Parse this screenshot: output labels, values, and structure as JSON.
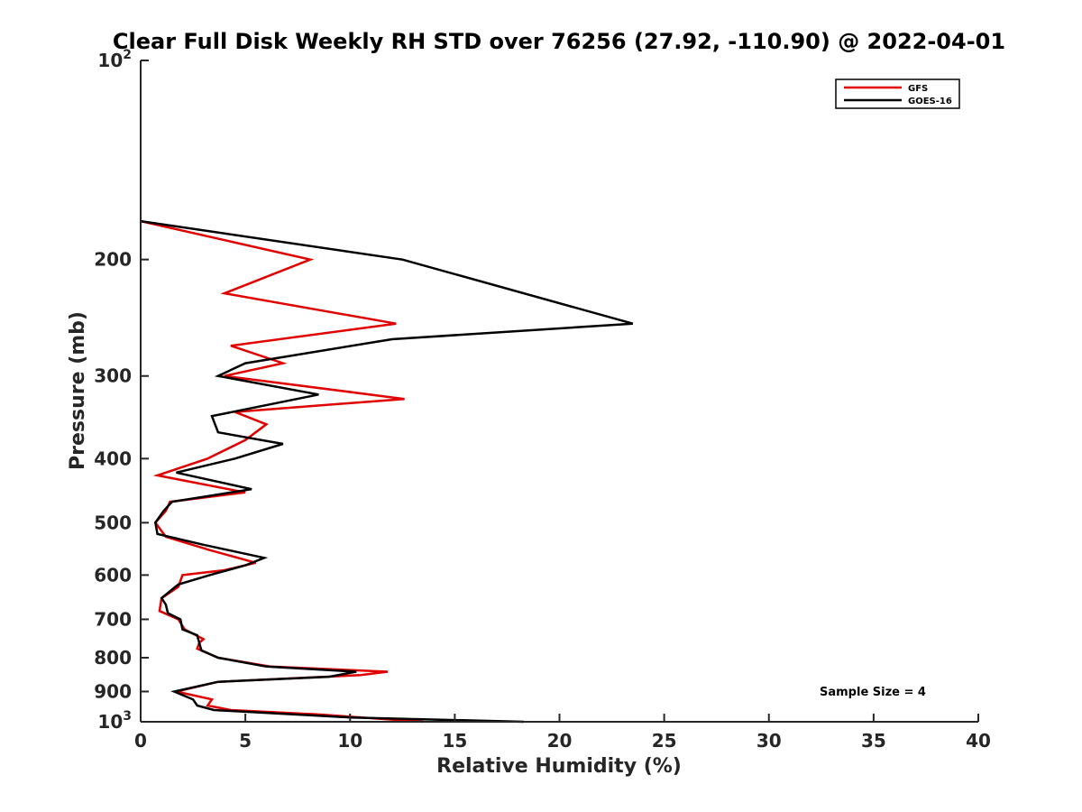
{
  "chart_data": {
    "type": "line",
    "title": "Clear Full Disk Weekly RH STD over 76256 (27.92, -110.90) @ 2022-04-01",
    "xlabel": "Relative Humidity (%)",
    "ylabel": "Pressure (mb)",
    "xlim": [
      0,
      40
    ],
    "ylim": [
      100,
      1000
    ],
    "yscale": "log",
    "y_reversed": true,
    "x_ticks": [
      0,
      5,
      10,
      15,
      20,
      25,
      30,
      35,
      40
    ],
    "x_tick_labels": [
      "0",
      "5",
      "10",
      "15",
      "20",
      "25",
      "30",
      "35",
      "40"
    ],
    "y_ticks": [
      100,
      200,
      300,
      400,
      500,
      600,
      700,
      800,
      900,
      1000
    ],
    "y_tick_labels": [
      {
        "base": "10",
        "exp": "2"
      },
      {
        "text": "200"
      },
      {
        "text": "300"
      },
      {
        "text": "400"
      },
      {
        "text": "500"
      },
      {
        "text": "600"
      },
      {
        "text": "700"
      },
      {
        "text": "800"
      },
      {
        "text": "900"
      },
      {
        "base": "10",
        "exp": "3"
      }
    ],
    "legend_position": "top-right",
    "annotation": "Sample Size = 4",
    "series": [
      {
        "name": "GFS",
        "color": "#e00000",
        "points": [
          [
            0.0,
            175
          ],
          [
            8.1,
            200
          ],
          [
            4.0,
            225
          ],
          [
            12.2,
            250
          ],
          [
            4.3,
            270
          ],
          [
            6.8,
            287
          ],
          [
            4.0,
            300
          ],
          [
            12.6,
            325
          ],
          [
            4.5,
            340
          ],
          [
            6.0,
            355
          ],
          [
            5.0,
            375
          ],
          [
            3.2,
            400
          ],
          [
            0.8,
            424
          ],
          [
            5.0,
            450
          ],
          [
            1.4,
            465
          ],
          [
            1.2,
            480
          ],
          [
            0.7,
            500
          ],
          [
            1.2,
            525
          ],
          [
            3.3,
            550
          ],
          [
            5.5,
            575
          ],
          [
            4.0,
            590
          ],
          [
            2.0,
            600
          ],
          [
            1.8,
            625
          ],
          [
            1.0,
            650
          ],
          [
            0.9,
            680
          ],
          [
            1.8,
            700
          ],
          [
            2.1,
            725
          ],
          [
            3.0,
            750
          ],
          [
            2.8,
            760
          ],
          [
            2.7,
            775
          ],
          [
            3.7,
            800
          ],
          [
            6.2,
            825
          ],
          [
            11.8,
            840
          ],
          [
            10.5,
            850
          ],
          [
            3.7,
            870
          ],
          [
            1.7,
            900
          ],
          [
            3.4,
            925
          ],
          [
            3.2,
            945
          ],
          [
            4.3,
            960
          ],
          [
            8.5,
            975
          ],
          [
            13.5,
            1000
          ]
        ]
      },
      {
        "name": "GOES-16",
        "color": "#000000",
        "points": [
          [
            0.0,
            175
          ],
          [
            12.5,
            200
          ],
          [
            23.5,
            250
          ],
          [
            12.0,
            264
          ],
          [
            5.0,
            287
          ],
          [
            3.7,
            300
          ],
          [
            8.5,
            320
          ],
          [
            3.4,
            345
          ],
          [
            3.7,
            365
          ],
          [
            6.8,
            380
          ],
          [
            4.5,
            400
          ],
          [
            1.7,
            420
          ],
          [
            5.3,
            445
          ],
          [
            1.5,
            465
          ],
          [
            1.1,
            480
          ],
          [
            0.7,
            500
          ],
          [
            0.8,
            520
          ],
          [
            3.0,
            540
          ],
          [
            5.9,
            565
          ],
          [
            5.0,
            580
          ],
          [
            3.3,
            600
          ],
          [
            1.8,
            620
          ],
          [
            1.0,
            650
          ],
          [
            1.2,
            665
          ],
          [
            1.3,
            685
          ],
          [
            1.9,
            700
          ],
          [
            2.0,
            725
          ],
          [
            2.7,
            740
          ],
          [
            2.8,
            760
          ],
          [
            2.9,
            780
          ],
          [
            3.7,
            800
          ],
          [
            6.0,
            825
          ],
          [
            10.3,
            840
          ],
          [
            9.0,
            855
          ],
          [
            3.7,
            870
          ],
          [
            1.6,
            900
          ],
          [
            2.5,
            925
          ],
          [
            2.7,
            945
          ],
          [
            3.5,
            960
          ],
          [
            10.0,
            985
          ],
          [
            18.3,
            1000
          ]
        ]
      }
    ]
  }
}
